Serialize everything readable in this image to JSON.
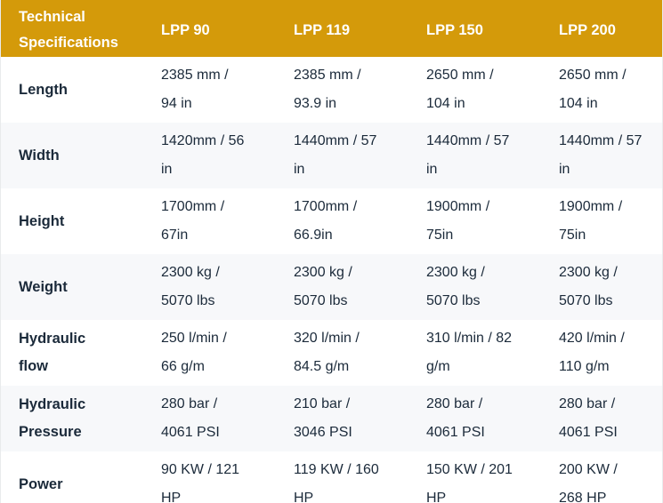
{
  "theme": {
    "header_bg": "#d49a0a",
    "header_text": "#ffffff",
    "body_text": "#1b2a3a",
    "row_bg": "#ffffff",
    "row_alt_bg": "#f7f8fa",
    "border": "#e9ebec"
  },
  "table": {
    "header": {
      "title": "Technical\nSpecifications",
      "columns": [
        "LPP 90",
        "LPP 119",
        "LPP 150",
        "LPP 200"
      ]
    },
    "rows": [
      {
        "label": "Length",
        "values": [
          "2385 mm /\n94 in",
          "2385 mm /\n93.9 in",
          "2650 mm /\n104 in",
          "2650 mm /\n104 in"
        ]
      },
      {
        "label": "Width",
        "values": [
          "1420mm / 56\nin",
          "1440mm / 57\nin",
          "1440mm / 57\nin",
          "1440mm / 57\nin"
        ]
      },
      {
        "label": "Height",
        "values": [
          "1700mm /\n67in",
          "1700mm /\n66.9in",
          "1900mm /\n75in",
          "1900mm /\n75in"
        ]
      },
      {
        "label": "Weight",
        "values": [
          "2300 kg /\n5070 lbs",
          "2300 kg /\n5070 lbs",
          "2300 kg /\n5070 lbs",
          "2300 kg /\n5070 lbs"
        ]
      },
      {
        "label": "Hydraulic\nflow",
        "values": [
          "250 l/min /\n66 g/m",
          "320 l/min /\n84.5 g/m",
          "310 l/min / 82\ng/m",
          "420 l/min /\n110 g/m"
        ]
      },
      {
        "label": "Hydraulic\nPressure",
        "values": [
          "280 bar /\n4061 PSI",
          "210 bar /\n3046 PSI",
          "280 bar /\n4061 PSI",
          "280 bar /\n4061 PSI"
        ]
      },
      {
        "label": "Power",
        "values": [
          "90 KW / 121\nHP",
          "119 KW / 160\nHP",
          "150 KW / 201\nHP",
          "200 KW /\n268 HP"
        ]
      }
    ]
  }
}
